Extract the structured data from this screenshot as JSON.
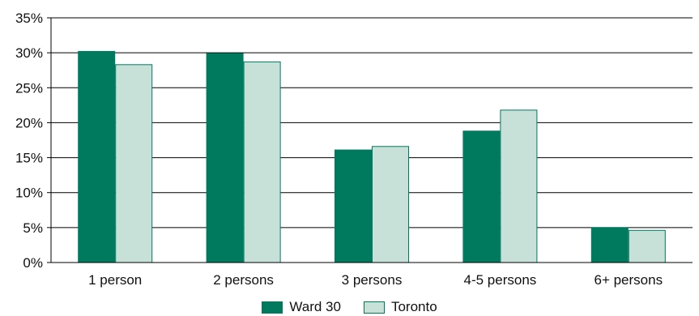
{
  "chart_data": {
    "type": "bar",
    "categories": [
      "1 person",
      "2 persons",
      "3 persons",
      "4-5 persons",
      "6+ persons"
    ],
    "series": [
      {
        "name": "Ward 30",
        "values": [
          30.2,
          29.9,
          16.1,
          18.8,
          5.0
        ],
        "color": "#007a5e",
        "stroke": "#007a5e"
      },
      {
        "name": "Toronto",
        "values": [
          28.3,
          28.7,
          16.6,
          21.8,
          4.6
        ],
        "color": "#c7e1d9",
        "stroke": "#007a5e"
      }
    ],
    "ylim": [
      0,
      35
    ],
    "yticks": [
      "0%",
      "5%",
      "10%",
      "15%",
      "20%",
      "25%",
      "30%",
      "35%"
    ],
    "grid": true,
    "legend_position": "bottom-center",
    "title": "",
    "xlabel": "",
    "ylabel": ""
  }
}
